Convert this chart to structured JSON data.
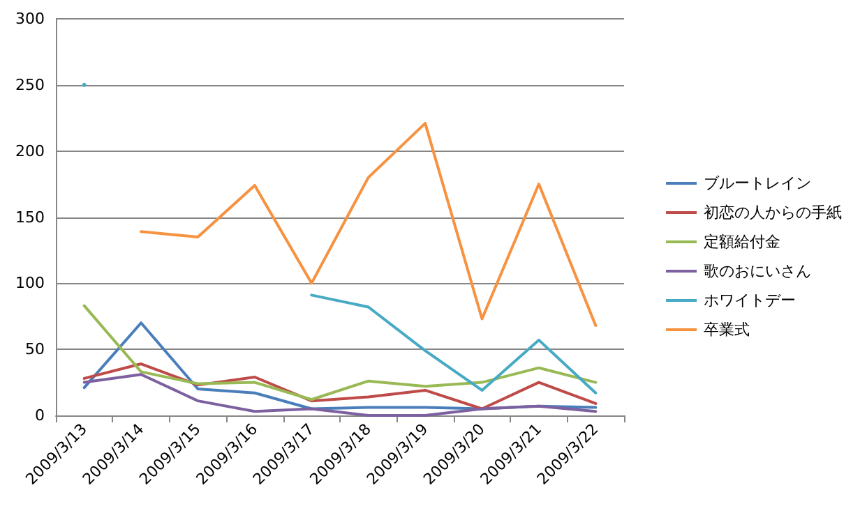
{
  "chart_data": {
    "type": "line",
    "categories": [
      "2009/3/13",
      "2009/3/14",
      "2009/3/15",
      "2009/3/16",
      "2009/3/17",
      "2009/3/18",
      "2009/3/19",
      "2009/3/20",
      "2009/3/21",
      "2009/3/22"
    ],
    "series": [
      {
        "name": "ブルートレイン",
        "color": "#4a7ebb",
        "values": [
          21,
          70,
          20,
          17,
          5,
          6,
          6,
          5,
          7,
          6
        ]
      },
      {
        "name": "初恋の人からの手紙",
        "color": "#be4b48",
        "values": [
          28,
          39,
          23,
          29,
          11,
          14,
          19,
          5,
          25,
          9
        ]
      },
      {
        "name": "定額給付金",
        "color": "#98b954",
        "values": [
          83,
          33,
          24,
          25,
          12,
          26,
          22,
          25,
          36,
          25
        ]
      },
      {
        "name": "歌のおにいさん",
        "color": "#7d60a0",
        "values": [
          25,
          31,
          11,
          3,
          5,
          0,
          0,
          5,
          7,
          3
        ]
      },
      {
        "name": "ホワイトデー",
        "color": "#46aac5",
        "values": [
          250,
          null,
          null,
          null,
          91,
          82,
          49,
          19,
          57,
          17
        ]
      },
      {
        "name": "卒業式",
        "color": "#f69240",
        "values": [
          null,
          139,
          135,
          174,
          100,
          180,
          221,
          73,
          175,
          68
        ]
      }
    ],
    "ylim": [
      0,
      300
    ],
    "yticks": [
      0,
      50,
      100,
      150,
      200,
      250,
      300
    ],
    "grid": "y",
    "legend": "right",
    "marker": "none",
    "line_style": "solid"
  }
}
